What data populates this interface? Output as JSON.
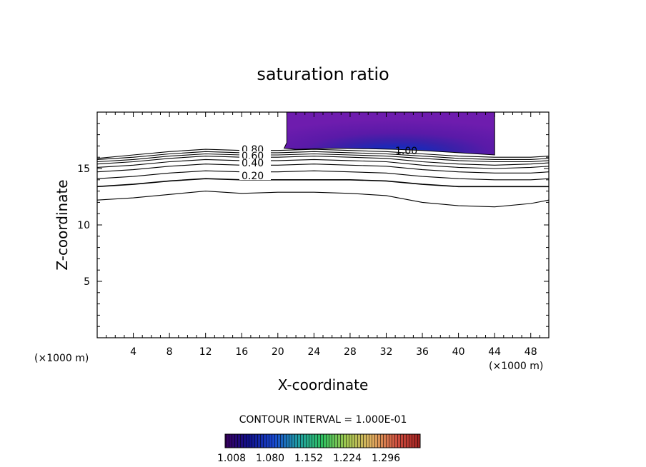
{
  "chart_data": {
    "type": "contour",
    "title": "saturation ratio",
    "xlabel": "X-coordinate",
    "ylabel": "Z-coordinate",
    "x_unit_label": "(×1000 m)",
    "z_unit_label": "(×1000 m)",
    "xlim": [
      0,
      50
    ],
    "ylim": [
      0,
      20
    ],
    "x_ticks": [
      4,
      8,
      12,
      16,
      20,
      24,
      28,
      32,
      36,
      40,
      44,
      48
    ],
    "y_ticks": [
      5,
      10,
      15
    ],
    "contour_interval_label": "CONTOUR INTERVAL = 1.000E-01",
    "contour_labels": [
      "0.80",
      "0.60",
      "0.40",
      "0.20",
      "1.00"
    ],
    "colorbar": {
      "ticks": [
        "1.008",
        "1.080",
        "1.152",
        "1.224",
        "1.296"
      ],
      "colors": [
        "#3a0060",
        "#10108a",
        "#1848d0",
        "#20a0a0",
        "#30c060",
        "#a0c850",
        "#e0b060",
        "#d05040",
        "#a02020"
      ]
    },
    "series": [
      {
        "level": 0.1,
        "x": [
          0,
          4,
          8,
          12,
          16,
          20,
          24,
          28,
          32,
          36,
          40,
          44,
          48,
          50
        ],
        "y": [
          12.2,
          12.4,
          12.7,
          13.0,
          12.8,
          12.9,
          12.9,
          12.8,
          12.6,
          12.0,
          11.7,
          11.6,
          11.9,
          12.2
        ]
      },
      {
        "level": 0.2,
        "x": [
          0,
          4,
          8,
          12,
          16,
          20,
          24,
          28,
          32,
          36,
          40,
          44,
          48,
          50
        ],
        "y": [
          13.4,
          13.6,
          13.9,
          14.1,
          14.0,
          14.0,
          14.0,
          14.0,
          13.9,
          13.6,
          13.4,
          13.4,
          13.4,
          13.4
        ]
      },
      {
        "level": 0.3,
        "x": [
          0,
          4,
          8,
          12,
          16,
          20,
          24,
          28,
          32,
          36,
          40,
          44,
          48,
          50
        ],
        "y": [
          14.1,
          14.3,
          14.6,
          14.8,
          14.7,
          14.7,
          14.8,
          14.7,
          14.6,
          14.3,
          14.1,
          14.0,
          14.0,
          14.1
        ]
      },
      {
        "level": 0.4,
        "x": [
          0,
          4,
          8,
          12,
          16,
          20,
          24,
          28,
          32,
          36,
          40,
          44,
          48,
          50
        ],
        "y": [
          14.7,
          14.9,
          15.2,
          15.4,
          15.3,
          15.3,
          15.4,
          15.3,
          15.2,
          14.9,
          14.7,
          14.6,
          14.6,
          14.7
        ]
      },
      {
        "level": 0.5,
        "x": [
          0,
          4,
          8,
          12,
          16,
          20,
          24,
          28,
          32,
          36,
          40,
          44,
          48,
          50
        ],
        "y": [
          15.1,
          15.3,
          15.6,
          15.8,
          15.7,
          15.7,
          15.8,
          15.7,
          15.6,
          15.3,
          15.1,
          15.0,
          15.1,
          15.2
        ]
      },
      {
        "level": 0.6,
        "x": [
          0,
          4,
          8,
          12,
          16,
          20,
          24,
          28,
          32,
          36,
          40,
          44,
          48,
          50
        ],
        "y": [
          15.4,
          15.6,
          15.9,
          16.1,
          16.0,
          16.0,
          16.1,
          16.0,
          15.9,
          15.6,
          15.4,
          15.3,
          15.4,
          15.5
        ]
      },
      {
        "level": 0.7,
        "x": [
          0,
          4,
          8,
          12,
          16,
          20,
          24,
          28,
          32,
          36,
          40,
          44,
          48,
          50
        ],
        "y": [
          15.6,
          15.8,
          16.1,
          16.3,
          16.2,
          16.2,
          16.3,
          16.2,
          16.1,
          15.9,
          15.7,
          15.6,
          15.6,
          15.7
        ]
      },
      {
        "level": 0.8,
        "x": [
          0,
          4,
          8,
          12,
          16,
          20,
          24,
          28,
          32,
          36,
          40,
          44,
          48,
          50
        ],
        "y": [
          15.8,
          16.0,
          16.3,
          16.5,
          16.4,
          16.4,
          16.5,
          16.4,
          16.3,
          16.1,
          15.9,
          15.8,
          15.8,
          15.9
        ]
      },
      {
        "level": 0.9,
        "x": [
          0,
          4,
          8,
          12,
          16,
          20,
          24,
          28,
          32,
          36,
          40,
          44,
          48,
          50
        ],
        "y": [
          15.9,
          16.2,
          16.5,
          16.7,
          16.6,
          16.6,
          16.7,
          16.6,
          16.5,
          16.3,
          16.1,
          16.0,
          16.0,
          16.1
        ]
      }
    ],
    "supersaturated_region": {
      "x_range": [
        21,
        44
      ],
      "z_bottom": 16.2,
      "z_top": 20,
      "max_near_x": 33,
      "max_near_z": 16.8
    }
  }
}
